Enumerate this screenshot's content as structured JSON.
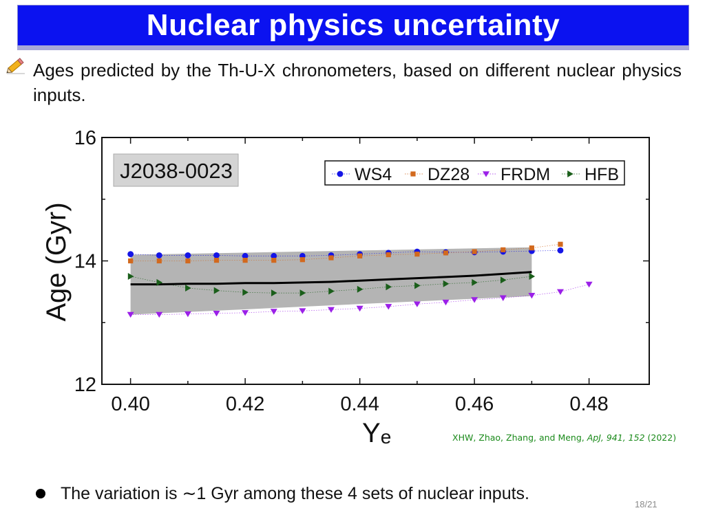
{
  "slide": {
    "title": "Nuclear physics uncertainty",
    "intro": "Ages predicted by the Th-U-X chronometers, based on different nuclear physics inputs.",
    "bullet": "The variation is ∼1 Gyr among these 4 sets of nuclear inputs.",
    "page": "18/21",
    "citation": {
      "authors": "XHW, Zhao, Zhang, and Meng, ",
      "journal": "ApJ, 941, 152",
      "year": " (2022)"
    },
    "icons": {
      "bullet_icon": "pencil-icon"
    },
    "colors": {
      "title_bg": "#0b12f0",
      "title_rule": "#a8a8d8",
      "citation": "#1a8a1a",
      "band": "#b4b4b4"
    }
  },
  "chart_data": {
    "type": "scatter",
    "label_box": "J2038-0023",
    "xlabel": "Y",
    "xlabel_sub": "e",
    "ylabel": "Age (Gyr)",
    "xlim": [
      0.395,
      0.4905
    ],
    "ylim": [
      12,
      16
    ],
    "xticks": [
      0.4,
      0.42,
      0.44,
      0.46,
      0.48
    ],
    "xtick_labels": [
      "0.40",
      "0.42",
      "0.44",
      "0.46",
      "0.48"
    ],
    "yticks": [
      12,
      14,
      16
    ],
    "ytick_labels": [
      "12",
      "14",
      "16"
    ],
    "grid": false,
    "legend_position": "top-right",
    "series": [
      {
        "name": "WS4",
        "marker": "circle",
        "color": "#1515e6",
        "x": [
          0.4,
          0.405,
          0.41,
          0.415,
          0.42,
          0.425,
          0.43,
          0.435,
          0.44,
          0.445,
          0.45,
          0.455,
          0.46,
          0.465,
          0.47,
          0.475
        ],
        "y": [
          14.11,
          14.09,
          14.09,
          14.09,
          14.08,
          14.08,
          14.08,
          14.09,
          14.11,
          14.13,
          14.15,
          14.14,
          14.14,
          14.15,
          14.16,
          14.17
        ]
      },
      {
        "name": "DZ28",
        "marker": "square",
        "color": "#d2691e",
        "x": [
          0.4,
          0.405,
          0.41,
          0.415,
          0.42,
          0.425,
          0.43,
          0.435,
          0.44,
          0.445,
          0.45,
          0.455,
          0.46,
          0.465,
          0.47,
          0.475
        ],
        "y": [
          14.0,
          14.0,
          14.0,
          14.01,
          14.01,
          14.01,
          14.02,
          14.05,
          14.08,
          14.1,
          14.11,
          14.13,
          14.15,
          14.18,
          14.21,
          14.27
        ]
      },
      {
        "name": "FRDM",
        "marker": "triangle-down",
        "color": "#9b20e8",
        "x": [
          0.4,
          0.405,
          0.41,
          0.415,
          0.42,
          0.425,
          0.43,
          0.435,
          0.44,
          0.445,
          0.45,
          0.455,
          0.46,
          0.465,
          0.47,
          0.475,
          0.48
        ],
        "y": [
          13.13,
          13.13,
          13.14,
          13.15,
          13.16,
          13.18,
          13.19,
          13.21,
          13.23,
          13.26,
          13.3,
          13.33,
          13.37,
          13.4,
          13.44,
          13.5,
          13.62
        ]
      },
      {
        "name": "HFB",
        "marker": "triangle-right",
        "color": "#1a5e1a",
        "x": [
          0.4,
          0.405,
          0.41,
          0.415,
          0.42,
          0.425,
          0.43,
          0.435,
          0.44,
          0.445,
          0.45,
          0.455,
          0.46,
          0.465,
          0.47
        ],
        "y": [
          13.75,
          13.65,
          13.56,
          13.52,
          13.49,
          13.48,
          13.48,
          13.51,
          13.54,
          13.58,
          13.6,
          13.63,
          13.65,
          13.69,
          13.75
        ]
      }
    ],
    "mean_line": {
      "name": "mean",
      "color": "#000000",
      "x": [
        0.4,
        0.405,
        0.41,
        0.415,
        0.42,
        0.425,
        0.43,
        0.435,
        0.44,
        0.445,
        0.45,
        0.455,
        0.46,
        0.465,
        0.47
      ],
      "y": [
        13.62,
        13.62,
        13.63,
        13.63,
        13.64,
        13.64,
        13.65,
        13.66,
        13.68,
        13.7,
        13.72,
        13.74,
        13.76,
        13.79,
        13.82
      ]
    },
    "band": {
      "x": [
        0.4,
        0.47
      ],
      "upper": [
        14.1,
        14.22
      ],
      "lower": [
        13.13,
        13.43
      ]
    }
  }
}
